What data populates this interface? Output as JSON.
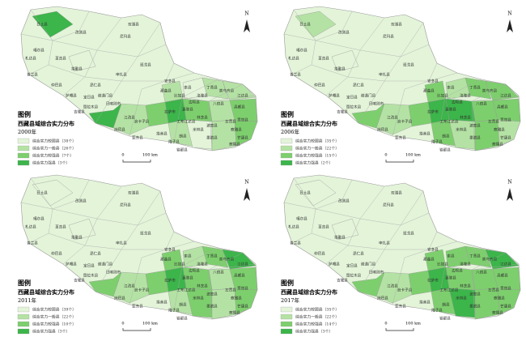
{
  "legend_title": "图例",
  "map_title": "西藏县域综合实力分布",
  "north": "N",
  "scale_zero": "0",
  "scale_label": "100 km",
  "county_labels": [
    "日土县",
    "噶尔县",
    "札达县",
    "普兰县",
    "改则县",
    "尼玛县",
    "革吉县",
    "措勤县",
    "仲巴县",
    "萨嘎县",
    "吉隆县",
    "聂拉木县",
    "定日县",
    "昂仁县",
    "谢通门县",
    "班戈县",
    "申扎县",
    "那曲县",
    "安多县",
    "索县",
    "比如县",
    "丁青县",
    "类乌齐县",
    "江达县",
    "昌都县",
    "贡觉县",
    "察雅县",
    "芒康县",
    "左贡县",
    "八宿县",
    "洛隆县",
    "边坝县",
    "嘉黎县",
    "工布江达县",
    "林芝县",
    "米林县",
    "朗县",
    "墨脱县",
    "察隅县",
    "波密县",
    "错那县",
    "隆子县",
    "措美县",
    "浪卡子县",
    "拉萨市",
    "日喀则市",
    "江孜县",
    "亚东县",
    "岗巴县",
    "双湖县"
  ],
  "panels": [
    {
      "year": "2000年",
      "legend": [
        {
          "label": "综合实力较弱县（38个）",
          "color": "#e3f4d9"
        },
        {
          "label": "综合实力一般县（26个）",
          "color": "#b4e2a4"
        },
        {
          "label": "综合实力较强县（7个）",
          "color": "#7dcf6d"
        },
        {
          "label": "综合实力强县（3个）",
          "color": "#3cb54a"
        }
      ]
    },
    {
      "year": "2006年",
      "legend": [
        {
          "label": "综合实力较弱县（35个）",
          "color": "#e3f4d9"
        },
        {
          "label": "综合实力一般县（22个）",
          "color": "#b4e2a4"
        },
        {
          "label": "综合实力较强县（15个）",
          "color": "#7dcf6d"
        },
        {
          "label": "综合实力强县（2个）",
          "color": "#3cb54a"
        }
      ]
    },
    {
      "year": "2011年",
      "legend": [
        {
          "label": "综合实力较弱县（39个）",
          "color": "#e3f4d9"
        },
        {
          "label": "综合实力一般县（22个）",
          "color": "#b4e2a4"
        },
        {
          "label": "综合实力较强县（10个）",
          "color": "#7dcf6d"
        },
        {
          "label": "综合实力强县（3个）",
          "color": "#3cb54a"
        }
      ]
    },
    {
      "year": "2017年",
      "legend": [
        {
          "label": "综合实力较弱县（35个）",
          "color": "#e3f4d9"
        },
        {
          "label": "综合实力一般县（22个）",
          "color": "#b4e2a4"
        },
        {
          "label": "综合实力较强县（14个）",
          "color": "#7dcf6d"
        },
        {
          "label": "综合实力强县（3个）",
          "color": "#3cb54a"
        }
      ]
    }
  ]
}
